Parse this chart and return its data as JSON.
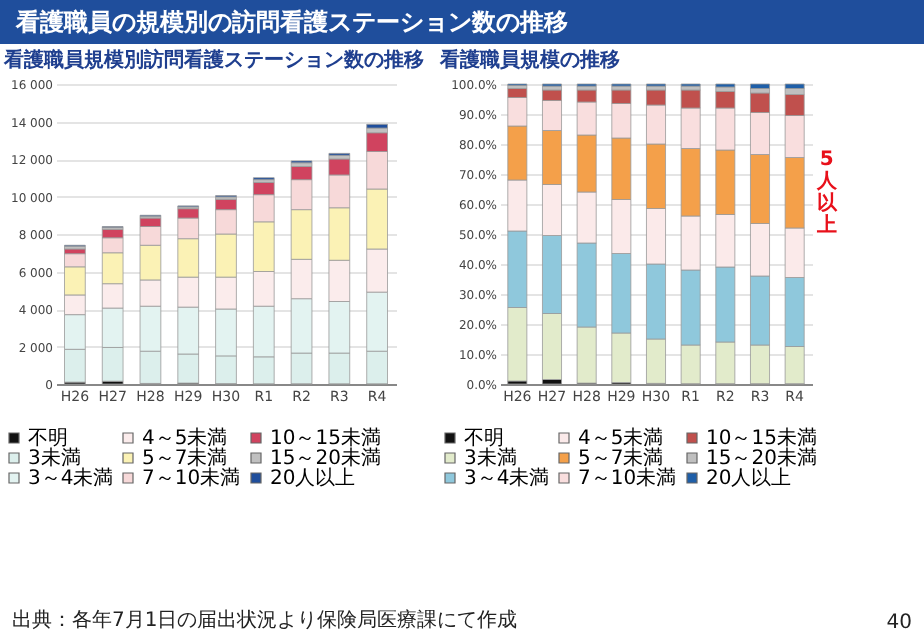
{
  "chart_data": [
    {
      "type": "bar",
      "title": "看護職員規模別訪問看護ステーション数の推移",
      "stacked": true,
      "categories": [
        "H26",
        "H27",
        "H28",
        "H29",
        "H30",
        "R1",
        "R2",
        "R3",
        "R4"
      ],
      "series": [
        {
          "name": "不明",
          "color": "#111111",
          "values": [
            100,
            150,
            30,
            50,
            20,
            10,
            10,
            10,
            10
          ]
        },
        {
          "name": "3未満",
          "color": "#dcefec",
          "values": [
            1750,
            1800,
            1720,
            1550,
            1480,
            1440,
            1640,
            1640,
            1740
          ]
        },
        {
          "name": "3～4未満",
          "color": "#e3f3f1",
          "values": [
            1850,
            2100,
            2400,
            2500,
            2500,
            2700,
            2900,
            2750,
            3150
          ]
        },
        {
          "name": "4～5未満",
          "color": "#fbecec",
          "values": [
            1050,
            1300,
            1400,
            1600,
            1700,
            1850,
            2100,
            2200,
            2300
          ]
        },
        {
          "name": "5～7未満",
          "color": "#fbf2b5",
          "values": [
            1500,
            1650,
            1850,
            2050,
            2300,
            2650,
            2650,
            2800,
            3200
          ]
        },
        {
          "name": "7～10未満",
          "color": "#f7d9d9",
          "values": [
            700,
            800,
            1000,
            1100,
            1300,
            1450,
            1600,
            1750,
            2000
          ]
        },
        {
          "name": "10～15未満",
          "color": "#d0435f",
          "values": [
            250,
            450,
            450,
            500,
            550,
            650,
            700,
            850,
            1000
          ]
        },
        {
          "name": "15～20未満",
          "color": "#c0c0c0",
          "values": [
            150,
            100,
            100,
            100,
            130,
            150,
            200,
            200,
            250
          ]
        },
        {
          "name": "20人以上",
          "color": "#1f4e9c",
          "values": [
            50,
            50,
            50,
            50,
            70,
            100,
            100,
            100,
            200
          ]
        }
      ],
      "ylim": [
        0,
        16000
      ],
      "yticks": [
        0,
        {
          "value": 2000,
          "label": "2 000"
        },
        {
          "value": 4000,
          "label": "4 000"
        },
        {
          "value": 6000,
          "label": "6 000"
        },
        {
          "value": 8000,
          "label": "8 000"
        },
        {
          "value": 10000,
          "label": "10 000"
        },
        {
          "value": 12000,
          "label": "12 000"
        },
        {
          "value": 14000,
          "label": "14 000"
        },
        {
          "value": 16000,
          "label": "16 000"
        }
      ],
      "grid": "y",
      "legend": "bottom",
      "annotations": [
        "看護職員の規模別の訪問看護ステーション数の推移",
        "出典：各年7月1日の届出状況より保険局医療課にて作成",
        "40"
      ]
    },
    {
      "type": "bar",
      "title": "看護職員規模の推移",
      "stacked": true,
      "categories": [
        "H26",
        "H27",
        "H28",
        "H29",
        "H30",
        "R1",
        "R2",
        "R3",
        "R4"
      ],
      "series": [
        {
          "name": "不明",
          "color": "#111111",
          "values": [
            1,
            1.5,
            0.3,
            0.5,
            0.2,
            0.1,
            0.1,
            0.1,
            0.1
          ]
        },
        {
          "name": "3未満",
          "color": "#e2ebcb",
          "values": [
            24.5,
            22,
            18.7,
            16.5,
            14.8,
            12.9,
            13.9,
            12.9,
            12.4
          ]
        },
        {
          "name": "3～4未満",
          "color": "#8fc8dc",
          "values": [
            25.5,
            26,
            28,
            26.5,
            25,
            25,
            25,
            23,
            23
          ]
        },
        {
          "name": "4～5未満",
          "color": "#fbeaea",
          "values": [
            17,
            17,
            17,
            18,
            18.5,
            18,
            17.5,
            17.5,
            16.5
          ]
        },
        {
          "name": "5～7未満",
          "color": "#f4a04a",
          "values": [
            18,
            18,
            19,
            20.5,
            21.5,
            22.5,
            21.5,
            23,
            23.5
          ]
        },
        {
          "name": "7～10未満",
          "color": "#f9dede",
          "values": [
            9.5,
            10,
            11,
            11.5,
            13,
            13.5,
            14,
            14,
            14
          ]
        },
        {
          "name": "10～15未満",
          "color": "#c0504d",
          "values": [
            3,
            3.5,
            4,
            4.5,
            5,
            6,
            5.5,
            6.5,
            7
          ]
        },
        {
          "name": "15～20未満",
          "color": "#bfbfbf",
          "values": [
            1,
            1.3,
            1.3,
            1.3,
            1.3,
            1.3,
            1.5,
            1.5,
            2
          ]
        },
        {
          "name": "20人以上",
          "color": "#1f5fa8",
          "values": [
            0.5,
            0.7,
            0.7,
            0.7,
            0.7,
            0.7,
            1,
            1.5,
            1.5
          ]
        }
      ],
      "ylim": [
        0,
        100
      ],
      "yticks": [
        {
          "value": 0,
          "label": "0.0%"
        },
        {
          "value": 10,
          "label": "10.0%"
        },
        {
          "value": 20,
          "label": "20.0%"
        },
        {
          "value": 30,
          "label": "30.0%"
        },
        {
          "value": 40,
          "label": "40.0%"
        },
        {
          "value": 50,
          "label": "50.0%"
        },
        {
          "value": 60,
          "label": "60.0%"
        },
        {
          "value": 70,
          "label": "70.0%"
        },
        {
          "value": 80,
          "label": "80.0%"
        },
        {
          "value": 90,
          "label": "90.0%"
        },
        {
          "value": 100,
          "label": "100.0%"
        }
      ],
      "grid": "y",
      "legend": "bottom",
      "annotations": [
        {
          "text": "5人以上",
          "x": "R4",
          "y": 75
        }
      ]
    }
  ]
}
